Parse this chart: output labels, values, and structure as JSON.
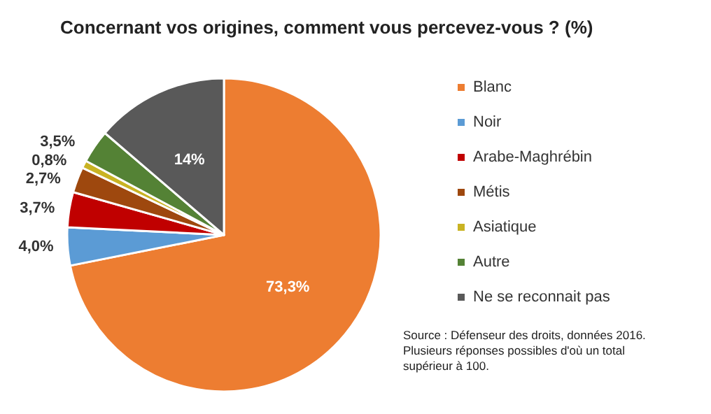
{
  "chart_data": {
    "type": "pie",
    "title": "Concernant vos origines, comment vous percevez-vous ? (%)",
    "categories": [
      "Blanc",
      "Noir",
      "Arabe-Maghrébin",
      "Métis",
      "Asiatique",
      "Autre",
      "Ne se reconnait pas"
    ],
    "values": [
      73.3,
      4.0,
      3.7,
      2.7,
      0.8,
      3.5,
      14
    ],
    "colors": [
      "#ed7d31",
      "#5b9bd5",
      "#c00000",
      "#9e480e",
      "#c9b323",
      "#548235",
      "#595959"
    ],
    "value_labels": [
      "73,3%",
      "4,0%",
      "3,7%",
      "2,7%",
      "0,8%",
      "3,5%",
      "14%"
    ],
    "legend": "right",
    "annotations": [
      "Source : Défenseur des droits, données 2016.\nPlusieurs réponses possibles d'où un total\nsupérieur à 100."
    ]
  }
}
